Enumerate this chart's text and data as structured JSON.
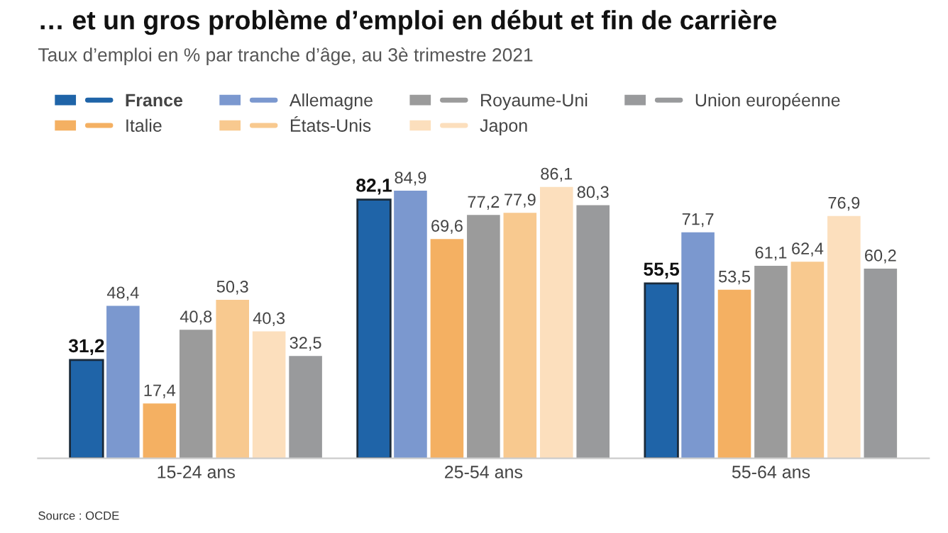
{
  "chart_data": {
    "type": "bar",
    "title": "… et un gros problème d’emploi en début et fin de carrière",
    "subtitle": "Taux d’emploi en % par tranche d’âge, au 3è trimestre 2021",
    "categories": [
      "15-24 ans",
      "25-54 ans",
      "55-64 ans"
    ],
    "series": [
      {
        "name": "France",
        "color": "#1f64a8",
        "values": [
          31.2,
          82.1,
          55.5
        ],
        "value_labels": [
          "31,2",
          "82,1",
          "55,5"
        ]
      },
      {
        "name": "Allemagne",
        "color": "#7b98cf",
        "values": [
          48.4,
          84.9,
          71.7
        ],
        "value_labels": [
          "48,4",
          "84,9",
          "71,7"
        ]
      },
      {
        "name": "Italie",
        "color": "#f4b062",
        "values": [
          17.4,
          69.6,
          53.5
        ],
        "value_labels": [
          "17,4",
          "69,6",
          "53,5"
        ]
      },
      {
        "name": "Royaume-Uni",
        "color": "#9b9b9b",
        "values": [
          40.8,
          77.2,
          61.1
        ],
        "value_labels": [
          "40,8",
          "77,2",
          "61,1"
        ]
      },
      {
        "name": "États-Unis",
        "color": "#f8c98f",
        "values": [
          50.3,
          77.9,
          62.4
        ],
        "value_labels": [
          "50,3",
          "77,9",
          "62,4"
        ]
      },
      {
        "name": "Japon",
        "color": "#fcdfbd",
        "values": [
          40.3,
          86.1,
          76.9
        ],
        "value_labels": [
          "40,3",
          "86,1",
          "76,9"
        ]
      },
      {
        "name": "Union européenne",
        "color": "#999a9c",
        "values": [
          32.5,
          80.3,
          60.2
        ],
        "value_labels": [
          "32,5",
          "80,3",
          "60,2"
        ]
      }
    ],
    "legend": "top left",
    "annotations": [
      "Source : OCDE"
    ]
  }
}
